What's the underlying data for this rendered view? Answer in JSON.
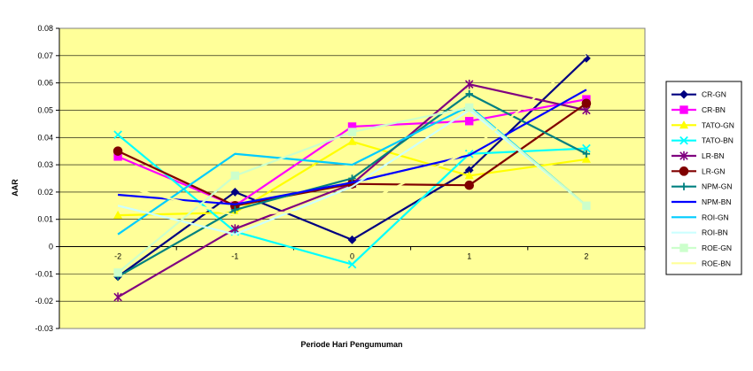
{
  "chart_data": {
    "type": "line",
    "title": "",
    "xlabel": "Periode Hari Pengumuman",
    "ylabel": "AAR",
    "categories": [
      "-2",
      "-1",
      "0",
      "1",
      "2"
    ],
    "ylim": [
      -0.03,
      0.08
    ],
    "yticks": [
      -0.03,
      -0.02,
      -0.01,
      0,
      0.01,
      0.02,
      0.03,
      0.04,
      0.05,
      0.06,
      0.07,
      0.08
    ],
    "ytick_labels": [
      "-0.03",
      "-0.02",
      "-0.01",
      "0",
      "0.01",
      "0.02",
      "0.03",
      "0.04",
      "0.05",
      "0.06",
      "0.07",
      "0.08"
    ],
    "grid": "horizontal",
    "plot_background": "#FFFF99",
    "legend_position": "right",
    "series": [
      {
        "name": "CR-GN",
        "color": "#000080",
        "marker": "diamond",
        "values": [
          -0.011,
          0.02,
          0.0025,
          0.028,
          0.069
        ]
      },
      {
        "name": "CR-BN",
        "color": "#FF00FF",
        "marker": "square",
        "values": [
          0.033,
          0.015,
          0.044,
          0.046,
          0.054
        ]
      },
      {
        "name": "TATO-GN",
        "color": "#FFFF00",
        "marker": "triangle",
        "values": [
          0.0115,
          0.0125,
          0.0385,
          0.026,
          0.032
        ]
      },
      {
        "name": "TATO-BN",
        "color": "#00FFFF",
        "marker": "x",
        "values": [
          0.041,
          0.0055,
          -0.0065,
          0.034,
          0.036
        ]
      },
      {
        "name": "LR-BN",
        "color": "#800080",
        "marker": "star",
        "values": [
          -0.0185,
          0.0065,
          0.023,
          0.0595,
          0.05
        ]
      },
      {
        "name": "LR-GN",
        "color": "#800000",
        "marker": "circle",
        "values": [
          0.035,
          0.015,
          0.023,
          0.0225,
          0.0525
        ]
      },
      {
        "name": "NPM-GN",
        "color": "#008080",
        "marker": "plus",
        "values": [
          -0.011,
          0.0135,
          0.025,
          0.056,
          0.034
        ]
      },
      {
        "name": "NPM-BN",
        "color": "#0000FF",
        "marker": "none",
        "values": [
          0.019,
          0.0155,
          0.0235,
          0.0335,
          0.0575
        ]
      },
      {
        "name": "ROI-GN",
        "color": "#00CCFF",
        "marker": "none",
        "values": [
          0.0045,
          0.034,
          0.03,
          0.0515,
          0.015
        ]
      },
      {
        "name": "ROI-BN",
        "color": "#CCFFFF",
        "marker": "none",
        "values": [
          0.015,
          0.0045,
          0.022,
          0.05,
          0.015
        ]
      },
      {
        "name": "ROE-GN",
        "color": "#CCFFCC",
        "marker": "square",
        "values": [
          -0.0095,
          0.026,
          0.042,
          0.051,
          0.015
        ]
      },
      {
        "name": "ROE-BN",
        "color": "#FFFF99",
        "marker": "none",
        "values": [
          0.0225,
          0.0115,
          0.014,
          0.035,
          0.07
        ]
      }
    ]
  }
}
